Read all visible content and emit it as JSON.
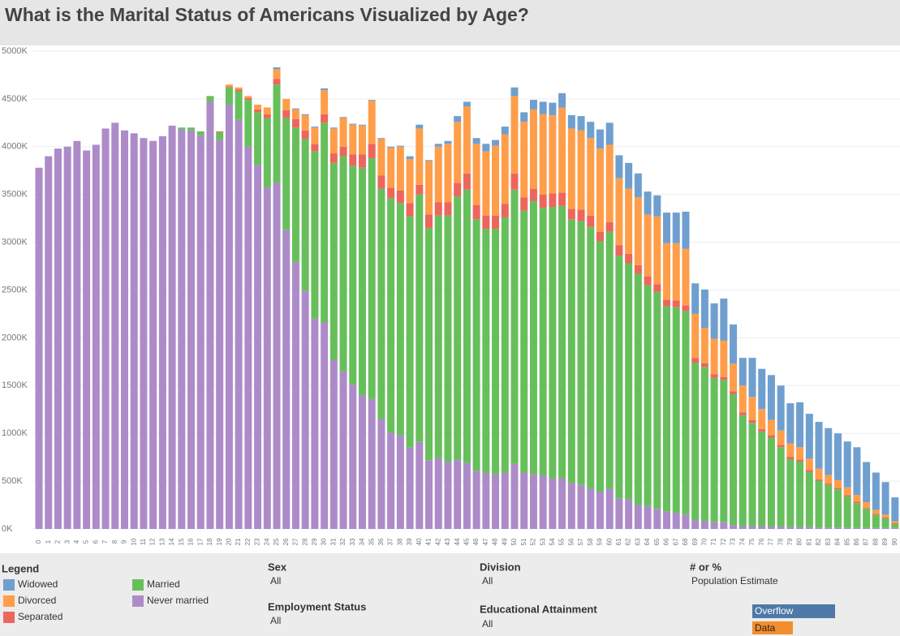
{
  "chart_data": {
    "type": "stacked_bar",
    "title": "What is the Marital Status of Americans Visualized by Age?",
    "legend_title": "Legend",
    "categories": [
      "0",
      "1",
      "2",
      "3",
      "4",
      "5",
      "6",
      "7",
      "8",
      "9",
      "10",
      "11",
      "12",
      "13",
      "14",
      "15",
      "16",
      "17",
      "18",
      "19",
      "20",
      "21",
      "22",
      "23",
      "24",
      "25",
      "26",
      "27",
      "28",
      "29",
      "30",
      "31",
      "32",
      "33",
      "34",
      "35",
      "36",
      "37",
      "38",
      "39",
      "40",
      "41",
      "42",
      "43",
      "44",
      "45",
      "46",
      "47",
      "48",
      "49",
      "50",
      "51",
      "52",
      "53",
      "54",
      "55",
      "56",
      "57",
      "58",
      "59",
      "60",
      "61",
      "62",
      "63",
      "64",
      "65",
      "66",
      "67",
      "68",
      "69",
      "70",
      "71",
      "72",
      "73",
      "74",
      "75",
      "76",
      "77",
      "78",
      "79",
      "80",
      "81",
      "82",
      "83",
      "84",
      "85",
      "86",
      "87",
      "88",
      "89",
      "90"
    ],
    "series": [
      {
        "name": "Never married",
        "color": "#ad8bc9",
        "values": [
          3780,
          3900,
          3980,
          4000,
          4060,
          3960,
          4020,
          4190,
          4250,
          4170,
          4140,
          4090,
          4060,
          4110,
          4220,
          4180,
          4170,
          4120,
          4470,
          4070,
          4440,
          4280,
          4000,
          3810,
          3570,
          3620,
          3130,
          2790,
          2490,
          2200,
          2160,
          1770,
          1650,
          1510,
          1400,
          1360,
          1150,
          1010,
          980,
          850,
          910,
          720,
          740,
          700,
          720,
          690,
          610,
          590,
          570,
          590,
          680,
          590,
          570,
          560,
          530,
          530,
          480,
          460,
          420,
          390,
          420,
          320,
          310,
          250,
          240,
          210,
          180,
          170,
          150,
          90,
          85,
          70,
          70,
          40,
          30,
          30,
          30,
          25,
          25,
          20,
          20,
          20,
          15,
          15,
          15,
          15,
          10,
          10,
          10,
          10,
          10
        ]
      },
      {
        "name": "Married",
        "color": "#67bf5c",
        "values": [
          0,
          0,
          0,
          0,
          0,
          0,
          0,
          0,
          0,
          0,
          0,
          0,
          0,
          0,
          0,
          20,
          30,
          40,
          60,
          80,
          180,
          300,
          490,
          550,
          730,
          1030,
          1170,
          1410,
          1590,
          1750,
          2090,
          2060,
          2250,
          2290,
          2380,
          2520,
          2410,
          2450,
          2430,
          2420,
          2590,
          2430,
          2540,
          2580,
          2760,
          2860,
          2630,
          2550,
          2570,
          2670,
          2870,
          2740,
          2860,
          2800,
          2840,
          2850,
          2760,
          2760,
          2740,
          2620,
          2690,
          2540,
          2470,
          2420,
          2310,
          2270,
          2150,
          2150,
          2130,
          1650,
          1610,
          1510,
          1490,
          1370,
          1160,
          1080,
          990,
          930,
          830,
          710,
          685,
          575,
          490,
          445,
          400,
          325,
          260,
          200,
          140,
          100,
          40
        ]
      },
      {
        "name": "Separated",
        "color": "#ed665d",
        "values": [
          0,
          0,
          0,
          0,
          0,
          0,
          0,
          0,
          0,
          0,
          0,
          0,
          0,
          0,
          0,
          0,
          0,
          0,
          0,
          10,
          10,
          20,
          20,
          30,
          40,
          60,
          80,
          90,
          90,
          80,
          90,
          100,
          100,
          120,
          140,
          150,
          140,
          110,
          130,
          140,
          100,
          140,
          140,
          140,
          140,
          170,
          150,
          140,
          140,
          140,
          170,
          140,
          130,
          140,
          140,
          140,
          110,
          120,
          120,
          100,
          100,
          110,
          100,
          90,
          90,
          80,
          70,
          70,
          60,
          50,
          40,
          40,
          30,
          30,
          30,
          30,
          25,
          25,
          25,
          25,
          20,
          20,
          15,
          15,
          15,
          15,
          15,
          10,
          10,
          10,
          10
        ]
      },
      {
        "name": "Divorced",
        "color": "#ff9e4a",
        "values": [
          0,
          0,
          0,
          0,
          0,
          0,
          0,
          0,
          0,
          0,
          0,
          0,
          0,
          0,
          0,
          0,
          0,
          0,
          0,
          0,
          20,
          20,
          20,
          50,
          70,
          100,
          120,
          100,
          160,
          170,
          250,
          260,
          300,
          310,
          300,
          450,
          380,
          420,
          460,
          460,
          590,
          560,
          580,
          610,
          640,
          700,
          640,
          670,
          730,
          730,
          810,
          790,
          830,
          840,
          820,
          890,
          840,
          830,
          810,
          870,
          810,
          700,
          680,
          710,
          650,
          710,
          590,
          600,
          590,
          460,
          370,
          370,
          380,
          290,
          280,
          240,
          210,
          160,
          150,
          140,
          130,
          120,
          110,
          90,
          80,
          80,
          70,
          60,
          40,
          30,
          20
        ]
      },
      {
        "name": "Widowed",
        "color": "#6f9fcf",
        "values": [
          0,
          0,
          0,
          0,
          0,
          0,
          0,
          0,
          0,
          0,
          0,
          0,
          0,
          0,
          0,
          0,
          0,
          0,
          0,
          0,
          0,
          0,
          0,
          0,
          0,
          20,
          0,
          10,
          10,
          10,
          20,
          10,
          10,
          10,
          10,
          10,
          10,
          10,
          10,
          30,
          40,
          10,
          30,
          30,
          60,
          50,
          60,
          80,
          60,
          80,
          90,
          100,
          100,
          130,
          130,
          150,
          140,
          150,
          170,
          200,
          230,
          240,
          270,
          250,
          240,
          220,
          320,
          320,
          390,
          320,
          400,
          370,
          440,
          410,
          290,
          410,
          420,
          470,
          470,
          420,
          470,
          470,
          490,
          490,
          490,
          480,
          500,
          420,
          390,
          340,
          250
        ]
      }
    ],
    "ylim": [
      0,
      5000
    ],
    "yticks": [
      {
        "value": 0,
        "label": "0K"
      },
      {
        "value": 500,
        "label": "500K"
      },
      {
        "value": 1000,
        "label": "1000K"
      },
      {
        "value": 1500,
        "label": "1500K"
      },
      {
        "value": 2000,
        "label": "2000K"
      },
      {
        "value": 2500,
        "label": "2500K"
      },
      {
        "value": 3000,
        "label": "3000K"
      },
      {
        "value": 3500,
        "label": "3500K"
      },
      {
        "value": 4000,
        "label": "4000K"
      },
      {
        "value": 4500,
        "label": "4500K"
      },
      {
        "value": 5000,
        "label": "5000K"
      }
    ],
    "grid": true
  },
  "filters": [
    {
      "label": "Sex",
      "value": "All"
    },
    {
      "label": "Employment Status",
      "value": "All"
    },
    {
      "label": "Division",
      "value": "All"
    },
    {
      "label": "Educational Attainment",
      "value": "All"
    },
    {
      "label": "# or %",
      "value": "Population Estimate"
    }
  ],
  "color_key": [
    "Overflow",
    "Data"
  ]
}
